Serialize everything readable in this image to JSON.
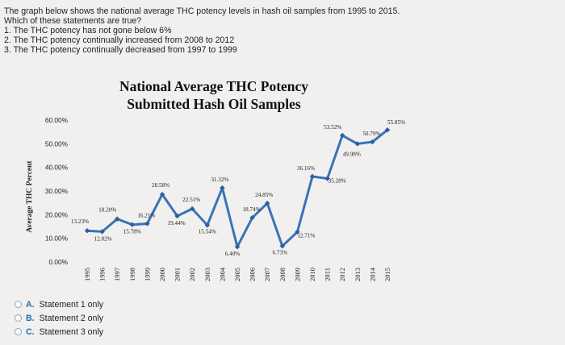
{
  "question": {
    "intro": "The graph below shows the national average THC potency levels in hash oil samples from 1995 to 2015.",
    "prompt": "Which of these statements are true?",
    "statements": [
      "1. The THC potency has not gone below 6%",
      "2. The THC potency continually increased from 2008 to 2012",
      "3. The THC potency continually decreased from 1997 to 1999"
    ]
  },
  "options": [
    {
      "letter": "A.",
      "text": "Statement 1 only"
    },
    {
      "letter": "B.",
      "text": "Statement 2 only"
    },
    {
      "letter": "C.",
      "text": "Statement 3 only"
    }
  ],
  "chart_data": {
    "type": "line",
    "title_line1": "National Average THC Potency",
    "title_line2": "Submitted Hash Oil Samples",
    "ylabel": "Average THC Percent",
    "xlabel": "",
    "ylim": [
      0,
      60
    ],
    "yticks": [
      "0.00%",
      "10.00%",
      "20.00%",
      "30.00%",
      "40.00%",
      "50.00%",
      "60.00%"
    ],
    "grid": false,
    "legend": "none",
    "line_color": "#3a73b8",
    "x": [
      "1995",
      "1996",
      "1997",
      "1998",
      "1999",
      "2000",
      "2001",
      "2002",
      "2003",
      "2004",
      "2005",
      "2006",
      "2007",
      "2008",
      "2009",
      "2010",
      "2011",
      "2012",
      "2013",
      "2014",
      "2015"
    ],
    "series": [
      {
        "values": [
          13.23,
          12.82,
          18.2,
          15.78,
          16.21,
          28.58,
          19.44,
          22.51,
          15.54,
          31.32,
          6.4,
          18.74,
          24.85,
          6.73,
          12.71,
          36.16,
          35.28,
          53.52,
          49.98,
          50.79,
          55.85
        ],
        "labels": [
          "13.23%",
          "12.82%",
          "18.20%",
          "15.78%",
          "16.21%",
          "28.58%",
          "19.44%",
          "22.51%",
          "15.54%",
          "31.32%",
          "6.40%",
          "18.74%",
          "24.85%",
          "6.73%",
          "12.71%",
          "36.16%",
          "35.28%",
          "53.52%",
          "49.98%",
          "50.79%",
          "55.85%"
        ]
      }
    ]
  }
}
